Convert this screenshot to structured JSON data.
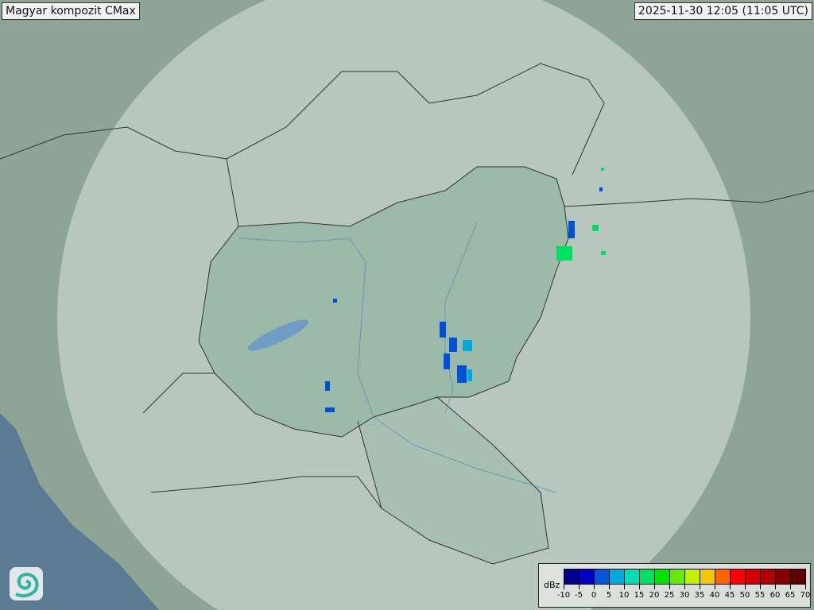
{
  "header": {
    "title": "Magyar kompozit  CMax",
    "timestamp": "2025-11-30 12:05 (11:05 UTC)"
  },
  "legend": {
    "unit": "dBz",
    "ticks": [
      "-10",
      "-5",
      "0",
      "5",
      "10",
      "15",
      "20",
      "25",
      "30",
      "35",
      "40",
      "45",
      "50",
      "55",
      "60",
      "65",
      "70"
    ],
    "colors": [
      "#00008c",
      "#0000cc",
      "#0058d8",
      "#00aadc",
      "#00dcb4",
      "#00e060",
      "#00e400",
      "#64ec00",
      "#c4f000",
      "#f4c800",
      "#ff6400",
      "#ff0000",
      "#d40000",
      "#b00000",
      "#880000",
      "#600000"
    ]
  },
  "logo": {
    "icon": "swirl-logo-icon"
  },
  "map": {
    "background": "#8ea596",
    "coverage_color": "#c9d6cf",
    "country_color": "#97b8a5",
    "echo_colors": [
      "#0050d8",
      "#00a8e0",
      "#00e060"
    ]
  }
}
